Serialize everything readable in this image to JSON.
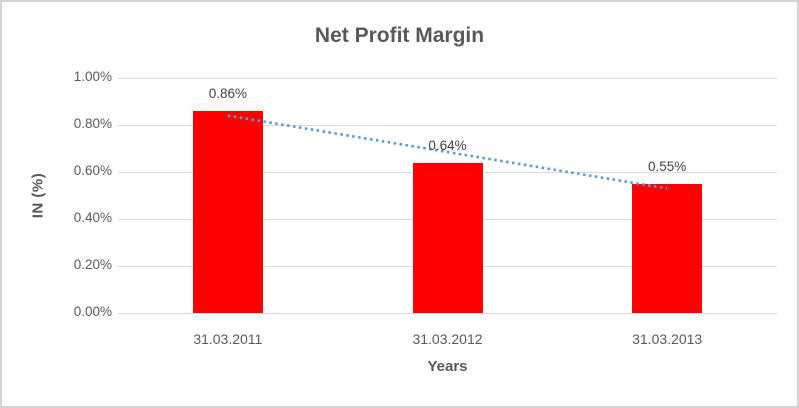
{
  "frame": {
    "background": "#ffffff",
    "border_color": "#d3d3d3"
  },
  "chart_data": {
    "type": "bar",
    "title": "Net Profit Margin",
    "categories": [
      "31.03.2011",
      "31.03.2012",
      "31.03.2013"
    ],
    "values": [
      0.86,
      0.64,
      0.55
    ],
    "data_labels": [
      "0.86%",
      "0.64%",
      "0.55%"
    ],
    "xlabel": "Years",
    "ylabel": "IN (%)",
    "ylim": [
      0,
      1.0
    ],
    "yticks": [
      0,
      0.2,
      0.4,
      0.6,
      0.8,
      1.0
    ],
    "ytick_labels": [
      "0.00%",
      "0.20%",
      "0.40%",
      "0.60%",
      "0.80%",
      "1.00%"
    ],
    "grid": true,
    "legend": "none",
    "bar_color": "#FF0000",
    "gridline_color": "#d9d9d9",
    "tick_text_color": "#595959",
    "data_label_color": "#404040",
    "trendline": {
      "style": "dotted",
      "color": "#5B9BD5",
      "start_value": 0.84,
      "end_value": 0.53
    }
  }
}
